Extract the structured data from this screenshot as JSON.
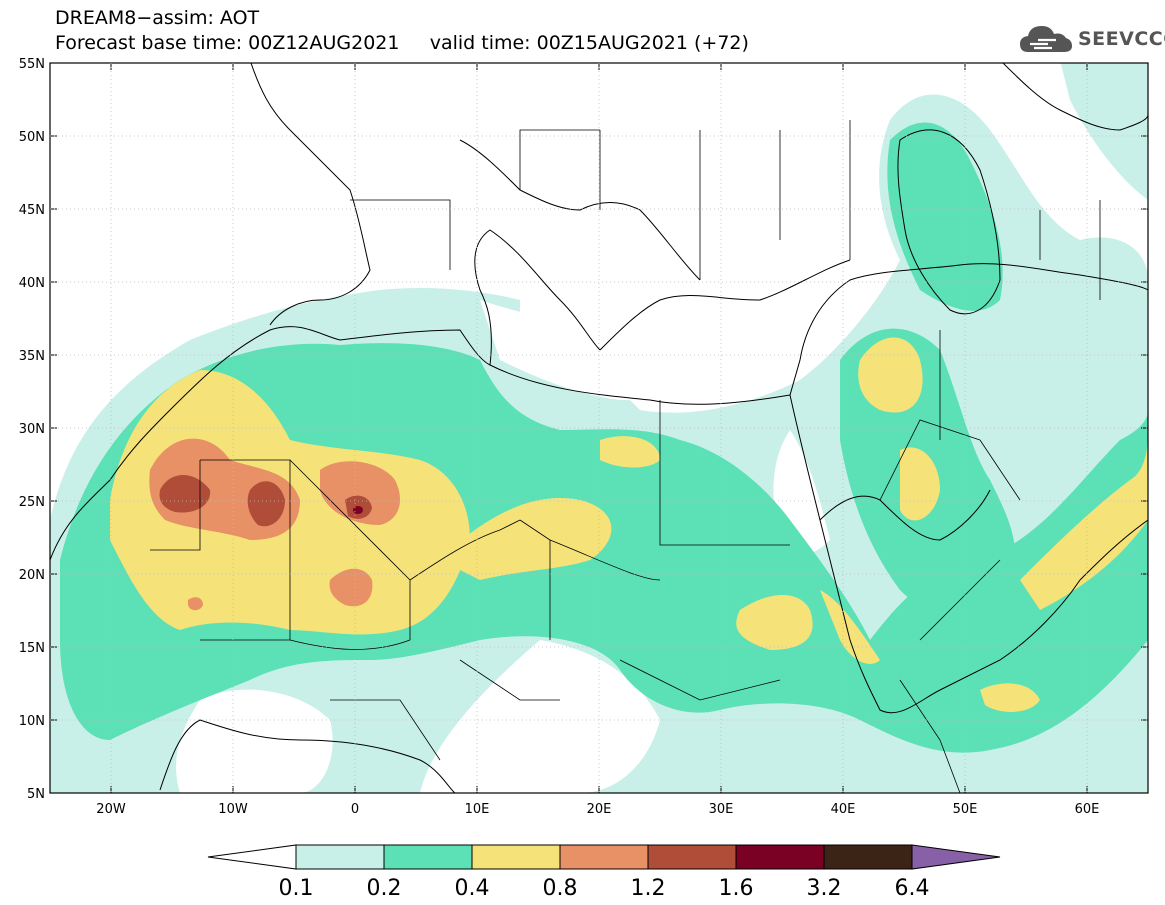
{
  "header": {
    "line1": "DREAM8−assim: AOT",
    "line2_base": "Forecast base time: 00Z12AUG2021",
    "line2_valid": "valid time: 00Z15AUG2021 (+72)"
  },
  "logo": {
    "text": "SEEVCCC",
    "icon": "cloud-icon"
  },
  "map": {
    "lat_labels": [
      "55N",
      "50N",
      "45N",
      "40N",
      "35N",
      "30N",
      "25N",
      "20N",
      "15N",
      "10N",
      "5N"
    ],
    "lon_labels": [
      "20W",
      "10W",
      "0",
      "10E",
      "20E",
      "30E",
      "40E",
      "50E",
      "60E"
    ],
    "lat_range": [
      5,
      55
    ],
    "lon_range": [
      -25,
      65
    ]
  },
  "colorbar": {
    "labels": [
      "0.1",
      "0.2",
      "0.4",
      "0.8",
      "1.2",
      "1.6",
      "3.2",
      "6.4"
    ],
    "colors": [
      "#ffffff",
      "#c8f0e8",
      "#5ce0b6",
      "#f5e37a",
      "#e89066",
      "#b04d38",
      "#7a0024",
      "#3b2416",
      "#8860a8"
    ]
  }
}
